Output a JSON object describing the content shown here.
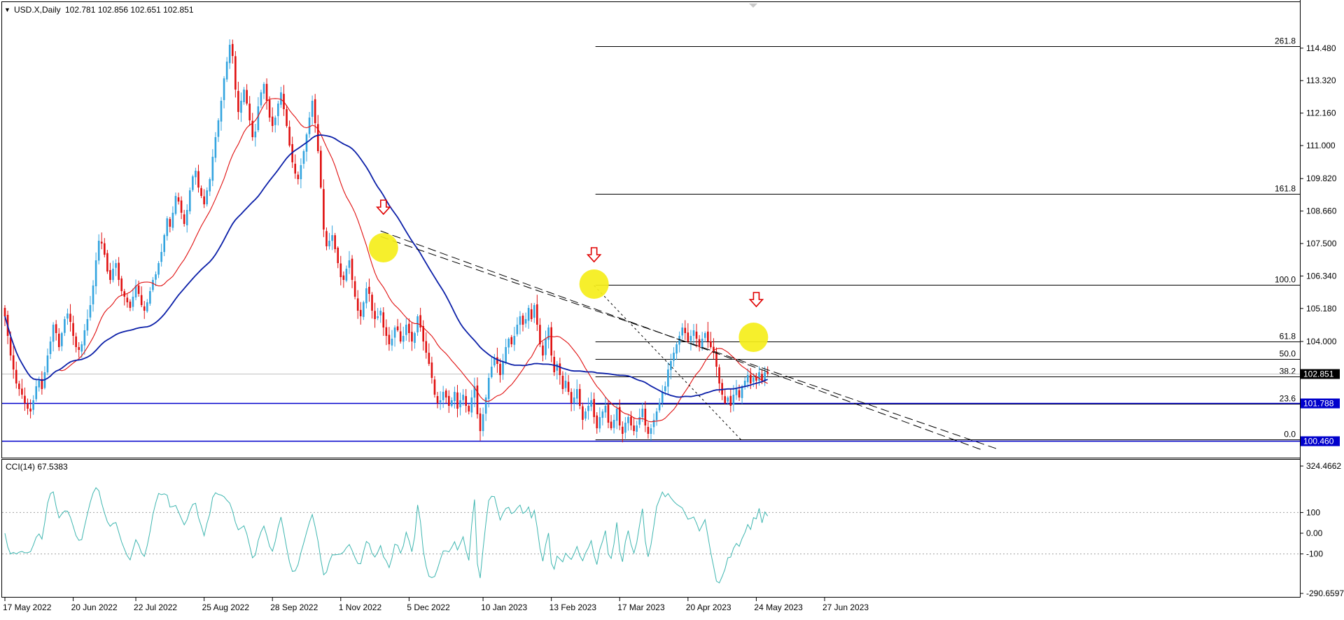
{
  "header": {
    "symbol": "USD.X,Daily",
    "ohlc": "102.781 102.856 102.651 102.851",
    "menu_glyph": "▼"
  },
  "chart_data": {
    "type": "candlestick",
    "symbol": "USD.X",
    "timeframe": "Daily",
    "price_axis": {
      "ylim": [
        100.2,
        115.2
      ],
      "ticks": [
        "114.480",
        "113.320",
        "112.160",
        "111.000",
        "109.820",
        "108.660",
        "107.500",
        "106.340",
        "105.180",
        "104.000"
      ]
    },
    "time_axis": {
      "labels": [
        "17 May 2022",
        "20 Jun 2022",
        "22 Jul 2022",
        "25 Aug 2022",
        "28 Sep 2022",
        "1 Nov 2022",
        "5 Dec 2022",
        "10 Jan 2023",
        "13 Feb 2023",
        "17 Mar 2023",
        "20 Apr 2023",
        "24 May 2023",
        "27 Jun 2023"
      ],
      "label_bars": [
        0,
        24,
        46,
        70,
        94,
        118,
        142,
        168,
        192,
        216,
        240,
        264,
        288
      ]
    },
    "current_price": {
      "value": 102.851,
      "label": "102.851",
      "color": "#000000"
    },
    "horizontal_levels": [
      {
        "value": 101.788,
        "label": "101.788",
        "color": "#0000cc"
      },
      {
        "value": 100.46,
        "label": "100.460",
        "color": "#0000cc"
      }
    ],
    "fibonacci": {
      "levels": [
        {
          "ratio": "261.8",
          "price": 114.55
        },
        {
          "ratio": "161.8",
          "price": 109.28
        },
        {
          "ratio": "100.0",
          "price": 106.02
        },
        {
          "ratio": "61.8",
          "price": 104.0
        },
        {
          "ratio": "50.0",
          "price": 103.38
        },
        {
          "ratio": "38.2",
          "price": 102.76
        },
        {
          "ratio": "23.6",
          "price": 101.77
        },
        {
          "ratio": "0.0",
          "price": 100.5
        }
      ],
      "start_bar": 207
    },
    "close_series": [
      104.9,
      104.2,
      103.5,
      103.0,
      102.5,
      102.3,
      102.1,
      101.8,
      101.6,
      101.5,
      101.9,
      102.4,
      102.6,
      102.3,
      102.9,
      103.5,
      104.0,
      104.6,
      104.3,
      103.8,
      104.3,
      104.8,
      105.0,
      104.7,
      104.2,
      103.8,
      103.7,
      103.9,
      104.4,
      104.8,
      105.3,
      106.0,
      106.9,
      107.6,
      107.5,
      107.1,
      106.5,
      106.2,
      106.6,
      106.8,
      106.2,
      105.8,
      105.6,
      105.4,
      105.2,
      105.6,
      106.0,
      105.7,
      105.3,
      105.1,
      105.4,
      105.8,
      106.2,
      106.4,
      106.8,
      107.2,
      107.8,
      108.4,
      108.1,
      108.6,
      109.2,
      109.0,
      108.6,
      108.2,
      108.7,
      109.4,
      109.9,
      110.1,
      109.5,
      109.2,
      108.9,
      109.4,
      109.8,
      110.6,
      111.3,
      111.9,
      112.6,
      113.4,
      114.0,
      114.6,
      114.2,
      113.0,
      112.2,
      112.6,
      113.0,
      112.5,
      111.9,
      111.3,
      111.5,
      112.4,
      112.9,
      113.2,
      112.6,
      112.0,
      111.7,
      112.0,
      112.5,
      112.9,
      112.3,
      111.7,
      111.0,
      110.4,
      110.0,
      109.8,
      110.3,
      110.8,
      111.4,
      112.0,
      112.6,
      111.8,
      110.8,
      109.5,
      108.0,
      107.4,
      107.6,
      107.8,
      107.3,
      106.8,
      106.3,
      106.2,
      106.6,
      106.9,
      106.2,
      105.6,
      105.1,
      104.9,
      105.4,
      105.9,
      105.7,
      105.1,
      104.8,
      104.9,
      105.1,
      104.5,
      104.2,
      103.9,
      104.1,
      104.5,
      104.4,
      104.0,
      104.2,
      104.6,
      104.3,
      104.0,
      104.3,
      104.9,
      104.5,
      104.0,
      103.6,
      103.2,
      102.7,
      102.1,
      101.8,
      101.9,
      102.2,
      102.0,
      101.7,
      101.9,
      102.2,
      101.6,
      101.9,
      102.1,
      101.7,
      101.5,
      102.0,
      102.4,
      101.4,
      100.8,
      101.4,
      102.0,
      102.7,
      103.1,
      103.4,
      103.2,
      102.8,
      103.3,
      103.8,
      104.1,
      103.9,
      104.2,
      104.6,
      104.9,
      104.6,
      104.8,
      105.2,
      104.8,
      105.3,
      104.6,
      103.9,
      103.5,
      104.1,
      104.5,
      103.5,
      102.9,
      103.2,
      102.8,
      102.3,
      102.6,
      102.2,
      101.8,
      102.0,
      102.3,
      101.7,
      101.2,
      101.5,
      101.7,
      101.9,
      101.3,
      100.9,
      101.3,
      101.5,
      101.7,
      101.1,
      100.9,
      101.2,
      101.6,
      101.0,
      100.7,
      101.1,
      101.3,
      101.0,
      100.8,
      101.0,
      101.3,
      101.6,
      101.0,
      100.7,
      100.9,
      101.2,
      101.5,
      101.8,
      102.2,
      102.4,
      103.0,
      103.3,
      103.6,
      103.9,
      104.2,
      104.5,
      104.3,
      104.0,
      104.2,
      104.4,
      104.1,
      103.8,
      104.1,
      104.3,
      104.0,
      103.8,
      103.6,
      103.1,
      102.5,
      102.1,
      101.8,
      102.0,
      101.7,
      102.1,
      102.3,
      102.0,
      102.4,
      102.6,
      102.8,
      102.5,
      102.7,
      102.6,
      102.9,
      102.6,
      102.9,
      102.85
    ],
    "moving_averages": [
      {
        "period": 20,
        "color": "#e01010"
      },
      {
        "period": 50,
        "color": "#0b1fa8"
      }
    ],
    "trendlines": {
      "dashed_outer": {
        "from": {
          "bar": 132,
          "price": 107.75
        },
        "to": {
          "bar": 349,
          "price": 100.15
        }
      },
      "dashed_inner": {
        "from": {
          "bar": 132,
          "price": 107.95
        },
        "to": {
          "bar": 344,
          "price": 100.1
        }
      },
      "dotted": {
        "from": {
          "bar": 207,
          "price": 106.0
        },
        "to": {
          "bar": 259,
          "price": 100.45
        }
      }
    },
    "highlight_circles": [
      {
        "bar": 133,
        "price": 107.35
      },
      {
        "bar": 207,
        "price": 106.05
      },
      {
        "bar": 263,
        "price": 104.15
      }
    ],
    "arrows": [
      {
        "bar": 133,
        "price": 108.75
      },
      {
        "bar": 207,
        "price": 107.05
      },
      {
        "bar": 264,
        "price": 105.45
      }
    ],
    "colors": {
      "bull": "#33a4df",
      "bear": "#e01010",
      "fib_line": "#000000",
      "level_line": "#0000cc",
      "circle": "#f5ee1a",
      "arrow": "#e00000",
      "cci_line": "#3fb6b0"
    },
    "indicator": {
      "name": "CCI(14)",
      "label": "CCI(14) 67.5383",
      "value": 67.5383,
      "ylim": [
        -290.6597,
        324.4662
      ],
      "tick_labels": [
        "324.4662",
        "100",
        "0.00",
        "-100",
        "-290.6597"
      ],
      "levels": [
        100,
        -100
      ]
    }
  }
}
